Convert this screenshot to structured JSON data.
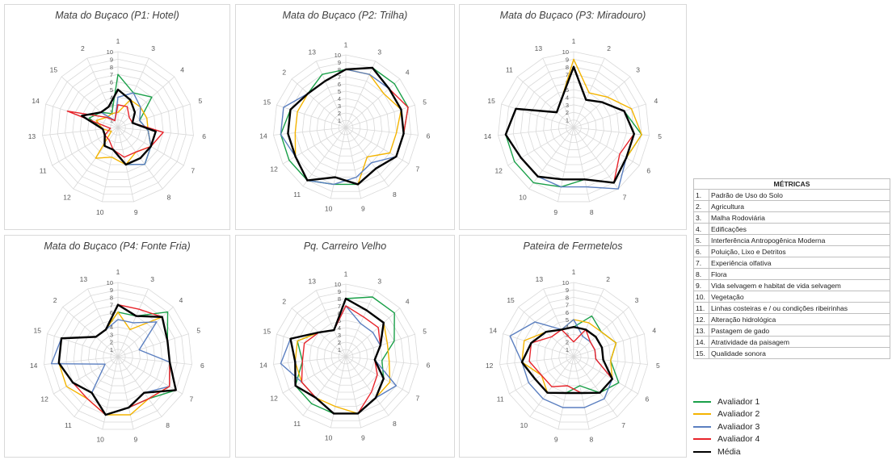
{
  "chart_data": [
    {
      "type": "radar",
      "title": "Mata do Buçaco (P1: Hotel)",
      "axes": [
        "1",
        "3",
        "4",
        "5",
        "6",
        "7",
        "8",
        "9",
        "10",
        "12",
        "11",
        "13",
        "14",
        "15",
        "2"
      ],
      "r_range": [
        0,
        10
      ],
      "ticks": [
        "1",
        "2",
        "3",
        "4",
        "5",
        "6",
        "7",
        "8",
        "9",
        "10"
      ],
      "series": [
        {
          "name": "Avaliador 1",
          "values": [
            7,
            5,
            6,
            3,
            4,
            5,
            6,
            5,
            3,
            3,
            2,
            2,
            4,
            3,
            2
          ]
        },
        {
          "name": "Avaliador 2",
          "values": [
            2,
            4,
            4,
            4,
            4,
            5,
            4,
            5,
            4,
            5,
            1,
            2,
            3,
            2,
            2
          ]
        },
        {
          "name": "Avaliador 3",
          "values": [
            4,
            5,
            4,
            3,
            4,
            5,
            6,
            5,
            3,
            3,
            2,
            2,
            5,
            3,
            1
          ]
        },
        {
          "name": "Avaliador 4",
          "values": [
            3,
            3,
            2,
            2,
            6,
            5,
            4,
            4,
            3,
            2,
            2,
            1,
            7,
            2,
            1
          ]
        },
        {
          "name": "Média",
          "values": [
            5,
            4,
            3,
            2,
            5,
            5,
            5,
            5,
            3,
            3,
            2,
            2,
            5,
            3,
            3
          ]
        }
      ]
    },
    {
      "type": "radar",
      "title": "Mata do Buçaco (P2: Trilha)",
      "axes": [
        "1",
        "3",
        "4",
        "5",
        "6",
        "7",
        "8",
        "9",
        "10",
        "11",
        "12",
        "14",
        "15",
        "2",
        "13"
      ],
      "r_range": [
        0,
        10
      ],
      "ticks": [
        "1",
        "2",
        "3",
        "4",
        "5",
        "6",
        "7",
        "8",
        "9",
        "10"
      ],
      "series": [
        {
          "name": "Avaliador 1",
          "values": [
            8,
            9,
            9,
            9,
            8,
            8,
            7,
            8,
            8,
            9,
            9,
            9,
            8,
            7,
            8
          ]
        },
        {
          "name": "Avaliador 2",
          "values": [
            8,
            8,
            7,
            8,
            7,
            7,
            5,
            8,
            7,
            9,
            8,
            7,
            7,
            7,
            7
          ]
        },
        {
          "name": "Avaliador 3",
          "values": [
            8,
            8,
            8,
            8,
            8,
            8,
            6,
            7,
            8,
            9,
            8,
            9,
            9,
            7,
            7
          ]
        },
        {
          "name": "Avaliador 4",
          "values": [
            8,
            9,
            8,
            9,
            8,
            8,
            7,
            8,
            7,
            9,
            8,
            8,
            8,
            7,
            7
          ]
        },
        {
          "name": "Média",
          "values": [
            8,
            9,
            8,
            8,
            8,
            8,
            7,
            8,
            7,
            9,
            8,
            8,
            8,
            7,
            7
          ]
        }
      ]
    },
    {
      "type": "radar",
      "title": "Mata do Buçaco (P3: Miradouro)",
      "axes": [
        "1",
        "2",
        "3",
        "4",
        "5",
        "6",
        "7",
        "8",
        "9",
        "10",
        "12",
        "14",
        "15",
        "11",
        "13"
      ],
      "r_range": [
        0,
        10
      ],
      "ticks": [
        "1",
        "2",
        "3",
        "4",
        "5",
        "6",
        "7",
        "8",
        "9",
        "10"
      ],
      "series": [
        {
          "name": "Avaliador 1",
          "values": [
            8,
            4,
            5,
            7,
            9,
            8,
            9,
            7,
            8,
            9,
            9,
            9,
            8,
            3,
            4
          ]
        },
        {
          "name": "Avaliador 2",
          "values": [
            9,
            5,
            6,
            8,
            9,
            8,
            9,
            7,
            7,
            8,
            8,
            9,
            8,
            3,
            4
          ]
        },
        {
          "name": "Avaliador 3",
          "values": [
            8,
            4,
            5,
            7,
            8,
            8,
            10,
            8,
            8,
            8,
            8,
            9,
            8,
            3,
            4
          ]
        },
        {
          "name": "Avaliador 4",
          "values": [
            8,
            4,
            5,
            7,
            8,
            7,
            9,
            7,
            7,
            8,
            8,
            9,
            8,
            3,
            4
          ]
        },
        {
          "name": "Média",
          "values": [
            8,
            4,
            5,
            7,
            8,
            8,
            9,
            7,
            7,
            8,
            8,
            9,
            8,
            3,
            4
          ]
        }
      ]
    },
    {
      "type": "radar",
      "title": "Mata do Buçaco (P4: Fonte Fria)",
      "axes": [
        "1",
        "3",
        "4",
        "5",
        "6",
        "7",
        "8",
        "9",
        "10",
        "11",
        "12",
        "14",
        "15",
        "2",
        "13"
      ],
      "r_range": [
        0,
        10
      ],
      "ticks": [
        "1",
        "2",
        "3",
        "4",
        "5",
        "6",
        "7",
        "8",
        "9",
        "10"
      ],
      "series": [
        {
          "name": "Avaliador 1",
          "values": [
            6,
            6,
            9,
            7,
            7,
            9,
            7,
            7,
            8,
            6,
            7,
            8,
            8,
            4,
            4
          ]
        },
        {
          "name": "Avaliador 2",
          "values": [
            6,
            4,
            8,
            7,
            7,
            8,
            7,
            8,
            8,
            7,
            8,
            8,
            8,
            4,
            4
          ]
        },
        {
          "name": "Avaliador 3",
          "values": [
            5,
            5,
            7,
            3,
            7,
            8,
            6,
            7,
            8,
            6,
            2,
            9,
            8,
            4,
            4
          ]
        },
        {
          "name": "Avaliador 4",
          "values": [
            7,
            7,
            8,
            7,
            7,
            8,
            7,
            7,
            8,
            7,
            7,
            8,
            8,
            4,
            4
          ]
        },
        {
          "name": "Média",
          "values": [
            7,
            6,
            8,
            7,
            7,
            9,
            6,
            7,
            8,
            6,
            7,
            8,
            8,
            4,
            4
          ]
        }
      ]
    },
    {
      "type": "radar",
      "title": "Pq. Carreiro Velho",
      "axes": [
        "1",
        "3",
        "4",
        "5",
        "6",
        "7",
        "8",
        "9",
        "10",
        "11",
        "12",
        "14",
        "15",
        "2",
        "13"
      ],
      "r_range": [
        0,
        10
      ],
      "ticks": [
        "1",
        "2",
        "3",
        "4",
        "5",
        "6",
        "7",
        "8",
        "9",
        "10"
      ],
      "series": [
        {
          "name": "Avaliador 1",
          "values": [
            8,
            9,
            9,
            7,
            5,
            6,
            7,
            8,
            8,
            8,
            8,
            6,
            7,
            5,
            4
          ]
        },
        {
          "name": "Avaliador 2",
          "values": [
            8,
            7,
            7,
            6,
            6,
            7,
            7,
            8,
            7,
            7,
            7,
            7,
            7,
            5,
            4
          ]
        },
        {
          "name": "Avaliador 3",
          "values": [
            7,
            5,
            5,
            5,
            4,
            8,
            7,
            8,
            8,
            7,
            7,
            9,
            8,
            5,
            4
          ]
        },
        {
          "name": "Avaliador 4",
          "values": [
            7,
            6,
            6,
            5,
            4,
            5,
            6,
            8,
            8,
            7,
            7,
            6,
            6,
            5,
            4
          ]
        },
        {
          "name": "Média",
          "values": [
            8,
            7,
            7,
            5,
            4,
            6,
            7,
            8,
            8,
            7,
            8,
            7,
            8,
            5,
            4
          ]
        }
      ]
    },
    {
      "type": "radar",
      "title": "Pateira de Fermetelos",
      "axes": [
        "1",
        "2",
        "3",
        "4",
        "5",
        "6",
        "7",
        "8",
        "9",
        "10",
        "11",
        "12",
        "14",
        "15",
        "13"
      ],
      "r_range": [
        0,
        10
      ],
      "ticks": [
        "1",
        "2",
        "3",
        "4",
        "5",
        "6",
        "7",
        "8",
        "9",
        "10"
      ],
      "series": [
        {
          "name": "Avaliador 1",
          "values": [
            4,
            6,
            5,
            6,
            5,
            7,
            6,
            4,
            5,
            6,
            6,
            7,
            6,
            5,
            4
          ]
        },
        {
          "name": "Avaliador 2",
          "values": [
            5,
            5,
            5,
            6,
            5,
            6,
            6,
            5,
            5,
            6,
            5,
            7,
            7,
            5,
            4
          ]
        },
        {
          "name": "Avaliador 3",
          "values": [
            5,
            3,
            3,
            3,
            3,
            6,
            7,
            7,
            7,
            7,
            7,
            7,
            9,
            7,
            4
          ]
        },
        {
          "name": "Avaliador 4",
          "values": [
            2,
            4,
            3,
            3,
            3,
            6,
            6,
            5,
            4,
            5,
            5,
            6,
            6,
            4,
            4
          ]
        },
        {
          "name": "Média",
          "values": [
            4,
            4,
            4,
            4,
            4,
            6,
            6,
            5,
            5,
            6,
            6,
            7,
            6,
            5,
            4
          ]
        }
      ]
    }
  ],
  "legend": [
    {
      "name": "Avaliador 1",
      "color": "#1aa049"
    },
    {
      "name": "Avaliador 2",
      "color": "#f4b400"
    },
    {
      "name": "Avaliador 3",
      "color": "#5b7fc0"
    },
    {
      "name": "Avaliador 4",
      "color": "#e8242b"
    },
    {
      "name": "Média",
      "color": "#000000"
    }
  ],
  "metrics": {
    "header": "MÉTRICAS",
    "items": [
      {
        "num": "1.",
        "label": "Padrão de Uso do Solo"
      },
      {
        "num": "2.",
        "label": "Agricultura"
      },
      {
        "num": "3.",
        "label": "Malha Rodoviária"
      },
      {
        "num": "4.",
        "label": "Edificações"
      },
      {
        "num": "5.",
        "label": "Interferência Antropogênica Moderna"
      },
      {
        "num": "6.",
        "label": "Poluição, Lixo e Detritos"
      },
      {
        "num": "7.",
        "label": "Experiência olfativa"
      },
      {
        "num": "8.",
        "label": "Flora"
      },
      {
        "num": "9.",
        "label": "Vida selvagem e habitat de vida selvagem"
      },
      {
        "num": "10.",
        "label": "Vegetação"
      },
      {
        "num": "11.",
        "label": "Linhas costeiras e / ou condições ribeirinhas"
      },
      {
        "num": "12.",
        "label": "Alteração hidrológica"
      },
      {
        "num": "13.",
        "label": "Pastagem de gado"
      },
      {
        "num": "14.",
        "label": "Atratividade da paisagem"
      },
      {
        "num": "15.",
        "label": "Qualidade sonora"
      }
    ]
  }
}
